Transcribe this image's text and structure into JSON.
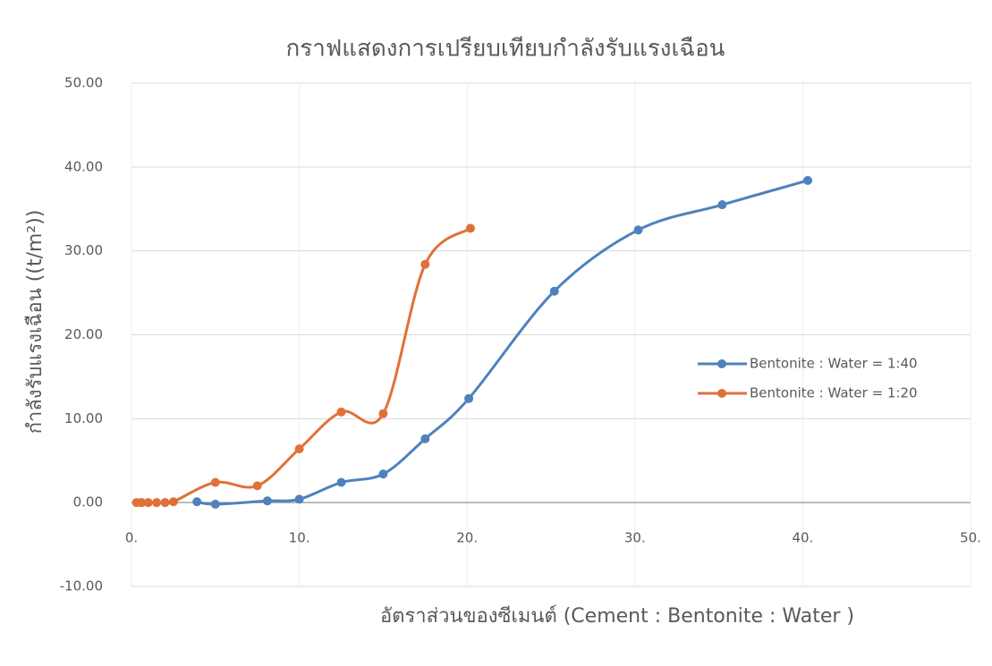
{
  "chart_data": {
    "type": "line",
    "title": "กราฟแสดงการเปรียบเทียบกำลังรับแรงเฉือน",
    "x_label": "อัตราส่วนของซีเมนต์ (Cement : Bentonite : Water )",
    "y_label": "กำลังรับแรงเฉือน ((t/m²))",
    "xlim": [
      0,
      50
    ],
    "ylim": [
      -10,
      50
    ],
    "xticks": [
      {
        "value": 0,
        "label": "0."
      },
      {
        "value": 10,
        "label": "10."
      },
      {
        "value": 20,
        "label": "20."
      },
      {
        "value": 30,
        "label": "30."
      },
      {
        "value": 40,
        "label": "40."
      },
      {
        "value": 50,
        "label": "50."
      }
    ],
    "yticks": [
      {
        "value": -10,
        "label": "-10.00"
      },
      {
        "value": 0,
        "label": "0.00"
      },
      {
        "value": 10,
        "label": "10.00"
      },
      {
        "value": 20,
        "label": "20.00"
      },
      {
        "value": 30,
        "label": "30.00"
      },
      {
        "value": 40,
        "label": "40.00"
      },
      {
        "value": 50,
        "label": "50.00"
      }
    ],
    "grid": true,
    "legend": "right",
    "series": [
      {
        "name": "Bentonite : Water = 1:40",
        "color": "#4f81bd",
        "x": [
          3.9,
          5,
          8.1,
          10,
          12.5,
          15,
          17.5,
          20.1,
          25.2,
          30.2,
          35.2,
          40.3
        ],
        "values": [
          0.1,
          -0.2,
          0.2,
          0.4,
          2.4,
          3.4,
          7.6,
          12.4,
          25.2,
          32.5,
          35.5,
          38.4
        ]
      },
      {
        "name": "Bentonite : Water = 1:20",
        "color": "#e0703a",
        "x": [
          0.3,
          0.6,
          1,
          1.5,
          2,
          2.5,
          5,
          7.5,
          10,
          12.5,
          15,
          17.5,
          20.2
        ],
        "values": [
          0,
          0,
          0,
          0,
          0,
          0.1,
          2.4,
          2.0,
          6.4,
          10.8,
          10.6,
          28.4,
          32.7
        ]
      }
    ]
  }
}
